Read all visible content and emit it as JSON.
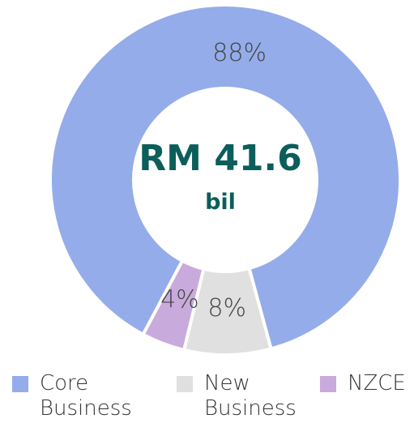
{
  "chart_data": {
    "type": "donut",
    "center_label": "RM 41.6",
    "center_sublabel": "bil",
    "categories": [
      "Core Business",
      "New Business",
      "NZCE"
    ],
    "values": [
      88,
      8,
      4
    ],
    "value_labels": [
      "88%",
      "8%",
      "4%"
    ],
    "colors": [
      "#94ace9",
      "#e0e0e0",
      "#c9aadc"
    ]
  }
}
